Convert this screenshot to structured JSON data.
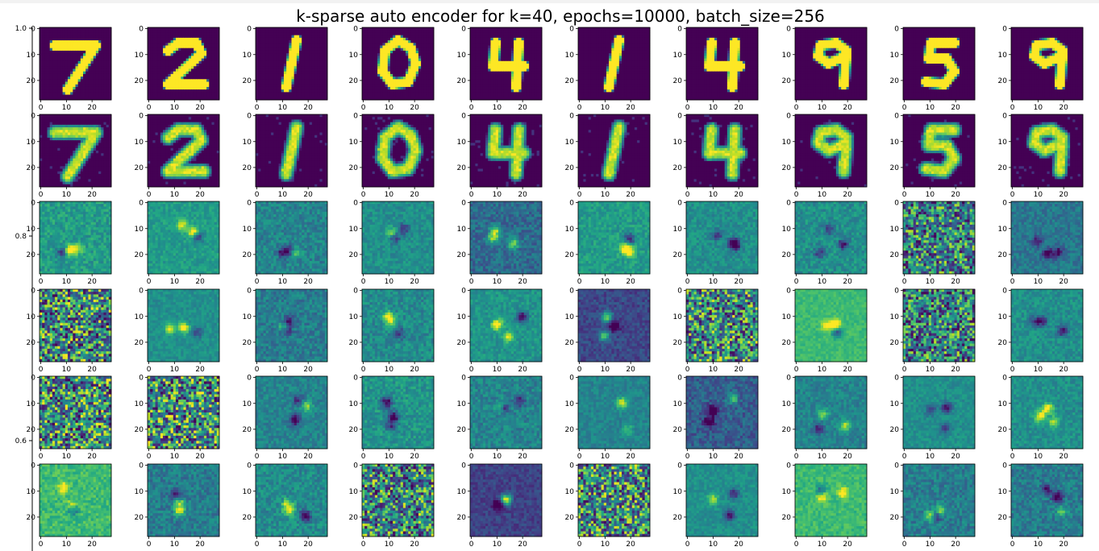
{
  "chart_data": {
    "type": "image_grid",
    "title": "k-sparse auto encoder for k=40, epochs=10000, batch_size=256",
    "rows": 6,
    "cols": 10,
    "image_size": 28,
    "colormap": "viridis",
    "digits": [
      "7",
      "2",
      "1",
      "0",
      "4",
      "1",
      "4",
      "9",
      "5",
      "9"
    ],
    "row_content": [
      "original",
      "reconstruction",
      "filter",
      "filter",
      "filter",
      "filter"
    ],
    "subplot_x_ticks": [
      "0",
      "10",
      "20"
    ],
    "subplot_y_ticks": [
      "0",
      "10",
      "20"
    ],
    "outer_y_ticks": [
      "1.0",
      "0.8",
      "0.6"
    ],
    "colors": {
      "low": "#440154",
      "mid": "#21918c",
      "high": "#fde725"
    }
  }
}
